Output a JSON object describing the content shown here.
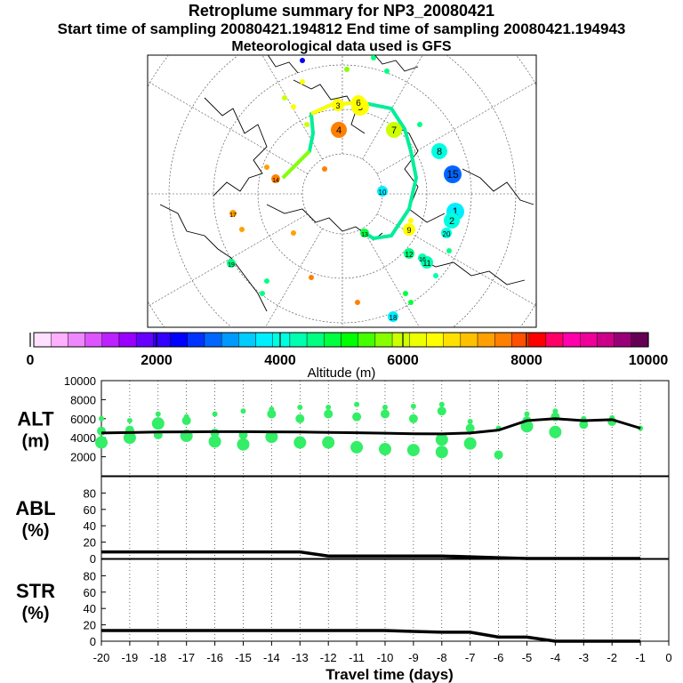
{
  "header": {
    "title": "Retroplume summary for NP3_20080421",
    "sampling_line": "Start time of sampling 20080421.194812     End time of sampling 20080421.194943",
    "met_line": "Meteorological data used is GFS"
  },
  "colorbar": {
    "colors": [
      "#ffe0ff",
      "#ffb0ff",
      "#ee88ff",
      "#dd55ff",
      "#bb22ff",
      "#9900ff",
      "#6600ff",
      "#3300ff",
      "#0000ff",
      "#0033ff",
      "#0066ff",
      "#0099ff",
      "#00ccff",
      "#00eeff",
      "#00ffe0",
      "#00ffb0",
      "#00ff80",
      "#00ff40",
      "#00ff00",
      "#44ff00",
      "#88ff00",
      "#ccff00",
      "#eeff00",
      "#ffff00",
      "#ffe000",
      "#ffc000",
      "#ffa000",
      "#ff8000",
      "#ff5000",
      "#ff0000",
      "#ff0066",
      "#ff00aa",
      "#ee0099",
      "#cc0088",
      "#990077",
      "#660055"
    ],
    "tick_labels": [
      "0",
      "2000",
      "4000",
      "6000",
      "8000",
      "10000"
    ],
    "label": "Altitude (m)"
  },
  "map": {
    "markers": [
      {
        "label": "1",
        "color": "#00eeff"
      },
      {
        "label": "2",
        "color": "#00ffe0"
      },
      {
        "label": "3",
        "color": "#ffff00"
      },
      {
        "label": "4",
        "color": "#ff8000"
      },
      {
        "label": "5",
        "color": "#ffff00"
      },
      {
        "label": "6",
        "color": "#ffff00"
      },
      {
        "label": "7",
        "color": "#ccff00"
      },
      {
        "label": "8",
        "color": "#00ffe0"
      },
      {
        "label": "9",
        "color": "#ffff00"
      },
      {
        "label": "10",
        "color": "#00eeff"
      },
      {
        "label": "11",
        "color": "#00ffb0"
      },
      {
        "label": "12",
        "color": "#00ff80"
      },
      {
        "label": "13",
        "color": "#00ff40"
      },
      {
        "label": "14",
        "color": "#ff8000"
      },
      {
        "label": "15",
        "color": "#0066ff"
      },
      {
        "label": "16",
        "color": "#00ffb0"
      },
      {
        "label": "17",
        "color": "#ffa000"
      },
      {
        "label": "18",
        "color": "#00eeff"
      },
      {
        "label": "19",
        "color": "#00ff80"
      },
      {
        "label": "20",
        "color": "#00ffe0"
      }
    ]
  },
  "chart_data": [
    {
      "type": "scatter",
      "name": "ALT",
      "ylabel": "ALT\n(m)",
      "ylabel_line1": "ALT",
      "ylabel_line2": "(m)",
      "ylim": [
        0,
        10000
      ],
      "yticks": [
        2000,
        4000,
        6000,
        8000,
        10000
      ],
      "ytick_labels": [
        "2000",
        "4000",
        "6000",
        "8000",
        "10000"
      ],
      "xlim": [
        -20,
        0
      ],
      "line": {
        "x": [
          -20,
          -19,
          -18,
          -17,
          -16,
          -15,
          -14,
          -13,
          -12,
          -11,
          -10,
          -9,
          -8,
          -7,
          -6,
          -5,
          -4,
          -3,
          -2,
          -1
        ],
        "y": [
          4500,
          4550,
          4600,
          4620,
          4640,
          4640,
          4620,
          4600,
          4560,
          4520,
          4480,
          4420,
          4400,
          4500,
          4800,
          5800,
          6000,
          5800,
          5900,
          5000
        ]
      },
      "clusters": [
        {
          "x": -20,
          "y": [
            6000,
            4700,
            3500
          ]
        },
        {
          "x": -19,
          "y": [
            5800,
            4800,
            4000
          ]
        },
        {
          "x": -18,
          "y": [
            6500,
            4300,
            5500
          ]
        },
        {
          "x": -17,
          "y": [
            6200,
            5800,
            4200
          ]
        },
        {
          "x": -16,
          "y": [
            6500,
            4500,
            3600
          ]
        },
        {
          "x": -15,
          "y": [
            6800,
            4300,
            3300
          ]
        },
        {
          "x": -14,
          "y": [
            7000,
            6500,
            4100
          ]
        },
        {
          "x": -13,
          "y": [
            7200,
            6000,
            3500
          ]
        },
        {
          "x": -12,
          "y": [
            7200,
            6500,
            3500
          ]
        },
        {
          "x": -11,
          "y": [
            7500,
            6200,
            3000
          ]
        },
        {
          "x": -10,
          "y": [
            7200,
            6500,
            2800
          ]
        },
        {
          "x": -9,
          "y": [
            7300,
            6000,
            2700
          ]
        },
        {
          "x": -8,
          "y": [
            7500,
            6800,
            3800,
            2500
          ]
        },
        {
          "x": -7,
          "y": [
            5700,
            5000,
            3400
          ]
        },
        {
          "x": -6,
          "y": [
            5000,
            2200
          ]
        },
        {
          "x": -5,
          "y": [
            6500,
            5800,
            5200
          ]
        },
        {
          "x": -4,
          "y": [
            6800,
            6200,
            4600
          ]
        },
        {
          "x": -3,
          "y": [
            6000,
            5400
          ]
        },
        {
          "x": -2,
          "y": [
            6100,
            5700
          ]
        },
        {
          "x": -1,
          "y": [
            5000
          ]
        }
      ]
    },
    {
      "type": "line",
      "name": "ABL",
      "ylabel_line1": "ABL",
      "ylabel_line2": "(%)",
      "ylim": [
        0,
        100
      ],
      "yticks": [
        0,
        20,
        40,
        60,
        80
      ],
      "ytick_labels": [
        "0",
        "20",
        "40",
        "60",
        "80"
      ],
      "xlim": [
        -20,
        0
      ],
      "x": [
        -20,
        -19,
        -18,
        -17,
        -16,
        -15,
        -14,
        -13,
        -12,
        -11,
        -10,
        -9,
        -8,
        -7,
        -6,
        -5,
        -4,
        -3,
        -2,
        -1
      ],
      "values": [
        8,
        8,
        8,
        8,
        8,
        8,
        8,
        8,
        3,
        3,
        3,
        3,
        3,
        2,
        1,
        0,
        0,
        0,
        0,
        0
      ]
    },
    {
      "type": "line",
      "name": "STR",
      "ylabel_line1": "STR",
      "ylabel_line2": "(%)",
      "ylim": [
        0,
        100
      ],
      "yticks": [
        0,
        20,
        40,
        60,
        80
      ],
      "ytick_labels": [
        "0",
        "20",
        "40",
        "60",
        "80"
      ],
      "xlim": [
        -20,
        0
      ],
      "x": [
        -20,
        -19,
        -18,
        -17,
        -16,
        -15,
        -14,
        -13,
        -12,
        -11,
        -10,
        -9,
        -8,
        -7,
        -6,
        -5,
        -4,
        -3,
        -2,
        -1
      ],
      "values": [
        13,
        13,
        13,
        13,
        13,
        13,
        13,
        13,
        13,
        13,
        13,
        12,
        11,
        11,
        5,
        5,
        0,
        0,
        0,
        0
      ]
    }
  ],
  "xaxis": {
    "tick_labels": [
      "-20",
      "-19",
      "-18",
      "-17",
      "-16",
      "-15",
      "-14",
      "-13",
      "-12",
      "-11",
      "-10",
      "-9",
      "-8",
      "-7",
      "-6",
      "-5",
      "-4",
      "-3",
      "-2",
      "-1",
      "0"
    ],
    "label": "Travel time (days)"
  }
}
